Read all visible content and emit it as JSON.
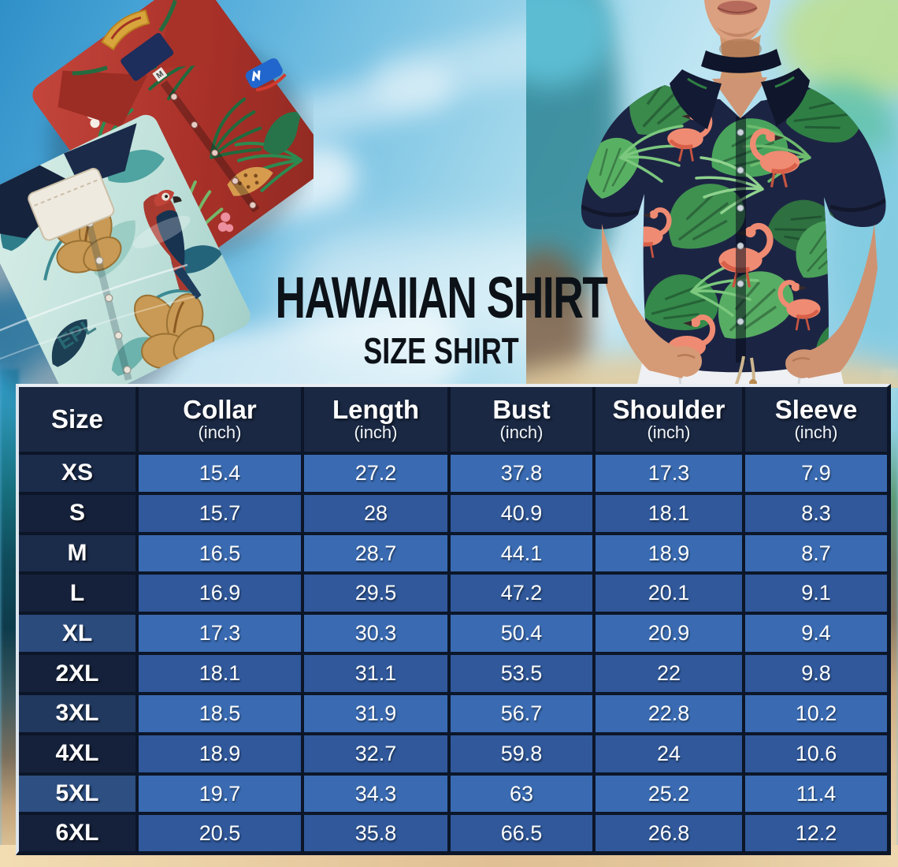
{
  "title": "HAWAIIAN SHIRT",
  "subtitle": "SIZE SHIRT",
  "photos": {
    "left_alt": "Two folded Hawaiian shirts: red with tropical leaves, teal with hibiscus and parrot",
    "right_alt": "Man wearing a navy Hawaiian shirt with flamingos and green leaves, white pants",
    "red_shirt_size_tag": "M",
    "teal_shirt_print_text": "EPL"
  },
  "size_chart": {
    "columns": [
      {
        "label": "Size",
        "unit": ""
      },
      {
        "label": "Collar",
        "unit": "(inch)"
      },
      {
        "label": "Length",
        "unit": "(inch)"
      },
      {
        "label": "Bust",
        "unit": "(inch)"
      },
      {
        "label": "Shoulder",
        "unit": "(inch)"
      },
      {
        "label": "Sleeve",
        "unit": "(inch)"
      }
    ],
    "rows": [
      {
        "size": "XS",
        "values": [
          "15.4",
          "27.2",
          "37.8",
          "17.3",
          "7.9"
        ]
      },
      {
        "size": "S",
        "values": [
          "15.7",
          "28",
          "40.9",
          "18.1",
          "8.3"
        ]
      },
      {
        "size": "M",
        "values": [
          "16.5",
          "28.7",
          "44.1",
          "18.9",
          "8.7"
        ]
      },
      {
        "size": "L",
        "values": [
          "16.9",
          "29.5",
          "47.2",
          "20.1",
          "9.1"
        ]
      },
      {
        "size": "XL",
        "values": [
          "17.3",
          "30.3",
          "50.4",
          "20.9",
          "9.4"
        ]
      },
      {
        "size": "2XL",
        "values": [
          "18.1",
          "31.1",
          "53.5",
          "22",
          "9.8"
        ]
      },
      {
        "size": "3XL",
        "values": [
          "18.5",
          "31.9",
          "56.7",
          "22.8",
          "10.2"
        ]
      },
      {
        "size": "4XL",
        "values": [
          "18.9",
          "32.7",
          "59.8",
          "24",
          "10.6"
        ]
      },
      {
        "size": "5XL",
        "values": [
          "19.7",
          "34.3",
          "63",
          "25.2",
          "11.4"
        ]
      },
      {
        "size": "6XL",
        "values": [
          "20.5",
          "35.8",
          "66.5",
          "26.8",
          "12.2"
        ]
      }
    ]
  },
  "colors": {
    "header_bg": "#1a2843",
    "row_light": "#3a6bb2",
    "row_dark": "#30589a",
    "size_cell_dark": "#15213a",
    "size_cell_light": "#2b4b7d",
    "grid_line": "#0c1628",
    "table_text": "#ffffff",
    "title_text": "#0c1218",
    "sky_blue": "#79c2e3",
    "sand": "#e9cda2",
    "red_shirt": "#b23a30",
    "teal_shirt": "#bfe0da",
    "navy_shirt": "#1c2443",
    "flamingo": "#ef8b72",
    "leaf_green": "#3f9150"
  }
}
